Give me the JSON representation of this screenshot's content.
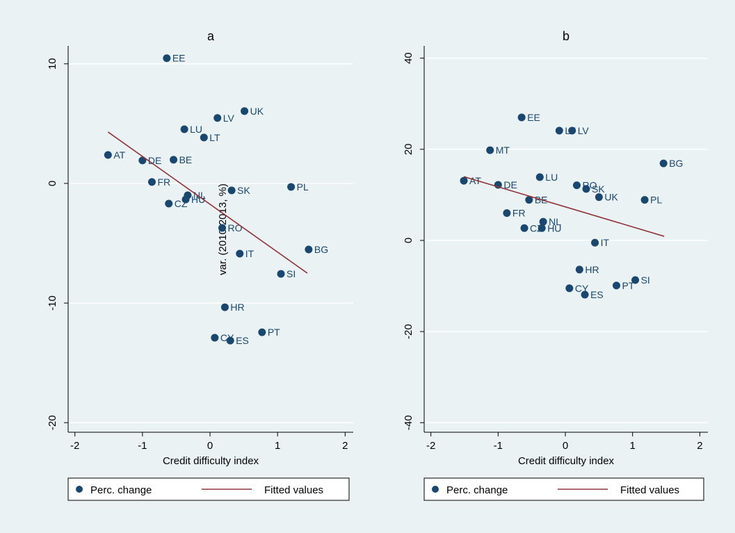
{
  "chart_data": [
    {
      "type": "scatter",
      "title": "a",
      "xlabel": "Credit difficulty index",
      "ylabel": "var. (2010-2013, %)",
      "xlim": [
        -2.1,
        2.12
      ],
      "ylim": [
        -20.8,
        11.5
      ],
      "xticks": [
        -2,
        -1,
        0,
        1,
        2
      ],
      "yticks": [
        -20,
        -10,
        0,
        10
      ],
      "grid": true,
      "legend": "bottom",
      "series": [
        {
          "name": "Perc. change",
          "color": "#1a476f",
          "labels": [
            "EE",
            "UK",
            "LV",
            "LU",
            "LT",
            "AT",
            "DE",
            "BE",
            "FR",
            "NL",
            "HU",
            "CZ",
            "SK",
            "PL",
            "RO",
            "BG",
            "IT",
            "SI",
            "HR",
            "PT",
            "CY",
            "ES"
          ],
          "x": [
            -0.64,
            0.51,
            0.11,
            -0.38,
            -0.09,
            -1.51,
            -1.0,
            -0.54,
            -0.86,
            -0.33,
            -0.36,
            -0.61,
            0.32,
            1.2,
            0.18,
            1.46,
            0.44,
            1.05,
            0.22,
            0.77,
            0.07,
            0.3
          ],
          "values": [
            10.47,
            6.05,
            5.47,
            4.53,
            3.84,
            2.38,
            1.92,
            1.98,
            0.12,
            -0.99,
            -1.34,
            -1.69,
            -0.58,
            -0.29,
            -3.72,
            -5.52,
            -5.87,
            -7.56,
            -10.35,
            -12.44,
            -12.9,
            -13.14
          ]
        },
        {
          "name": "Fitted values",
          "color": "#90353b",
          "x": [
            -1.51,
            1.44
          ],
          "values": [
            4.3,
            -7.5
          ]
        }
      ]
    },
    {
      "type": "scatter",
      "title": "b",
      "xlabel": "Credit difficulty index",
      "xlim": [
        -2.1,
        2.12
      ],
      "ylim": [
        -42.1,
        42.7
      ],
      "xticks": [
        -2,
        -1,
        0,
        1,
        2
      ],
      "yticks": [
        -40,
        -20,
        0,
        20,
        40
      ],
      "grid": true,
      "legend": "bottom",
      "series": [
        {
          "name": "Perc. change",
          "color": "#1a476f",
          "labels": [
            "EE",
            "LT",
            "LV",
            "MT",
            "BG",
            "LU",
            "AT",
            "DE",
            "RO",
            "SK",
            "UK",
            "PL",
            "BE",
            "FR",
            "NL",
            "CZ",
            "HU",
            "IT",
            "SI",
            "HR",
            "PT",
            "CY",
            "ES"
          ],
          "x": [
            -0.65,
            -0.09,
            0.1,
            -1.12,
            1.46,
            -0.38,
            -1.51,
            -1.0,
            0.17,
            0.31,
            0.5,
            1.18,
            -0.54,
            -0.87,
            -0.33,
            -0.61,
            -0.35,
            0.44,
            1.04,
            0.21,
            0.76,
            0.06,
            0.29
          ],
          "values": [
            27.0,
            24.1,
            24.1,
            19.8,
            16.9,
            13.9,
            13.1,
            12.2,
            12.1,
            11.3,
            9.5,
            8.9,
            8.9,
            6.0,
            4.1,
            2.7,
            2.7,
            -0.5,
            -8.7,
            -6.4,
            -9.9,
            -10.5,
            -11.9
          ]
        },
        {
          "name": "Fitted values",
          "color": "#90353b",
          "x": [
            -1.51,
            1.47
          ],
          "values": [
            14.0,
            0.9
          ]
        }
      ]
    }
  ]
}
